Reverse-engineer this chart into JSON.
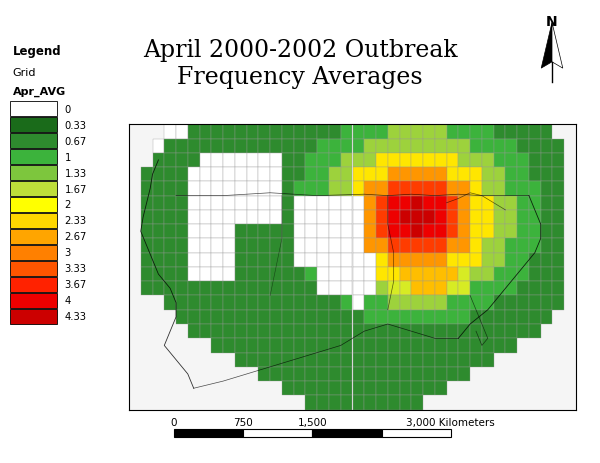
{
  "title": "April 2000-2002 Outbreak\nFrequency Averages",
  "title_fontsize": 17,
  "legend_title": "Legend",
  "legend_sub1": "Grid",
  "legend_sub2": "Apr_AVG",
  "colorbar_values": [
    0,
    0.33,
    0.67,
    1,
    1.33,
    1.67,
    2,
    2.33,
    2.67,
    3,
    3.33,
    3.67,
    4,
    4.33
  ],
  "colorbar_colors": [
    "#FFFFFF",
    "#1A6B1A",
    "#2E8B2E",
    "#3CB33C",
    "#7DC63D",
    "#BEDE3A",
    "#FFFF00",
    "#FFD700",
    "#FFA500",
    "#FF8000",
    "#FF5500",
    "#FF2200",
    "#EE0000",
    "#CC0000"
  ],
  "background_color": "#FFFFFF",
  "map_border_color": "#000000",
  "grid_line_color": "#999999",
  "scale_ticks": [
    "0",
    "750",
    "1,500",
    "3,000 Kilometers"
  ],
  "north_label": "N"
}
